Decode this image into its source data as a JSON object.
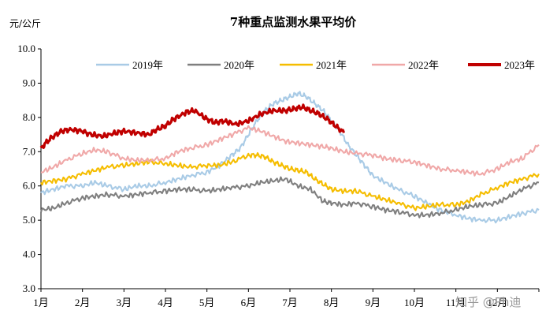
{
  "watermark": "知乎 @Ph迪",
  "chart_data": {
    "type": "line",
    "title": "7种重点监测水果平均价",
    "ylabel": "元/公斤",
    "ylim": [
      3.0,
      10.0
    ],
    "yticks": [
      "3.0",
      "4.0",
      "5.0",
      "6.0",
      "7.0",
      "8.0",
      "9.0",
      "10.0"
    ],
    "categories": [
      "1月",
      "2月",
      "3月",
      "4月",
      "5月",
      "6月",
      "7月",
      "8月",
      "9月",
      "10月",
      "11月",
      "12月"
    ],
    "legend_position": "top",
    "grid": false,
    "series": [
      {
        "name": "2019年",
        "color": "#a9cbe6",
        "x": [
          0,
          0.3,
          0.6,
          1.0,
          1.3,
          1.6,
          2.0,
          2.3,
          2.6,
          3.0,
          3.3,
          3.6,
          4.0,
          4.3,
          4.6,
          4.8,
          5.0,
          5.2,
          5.4,
          5.6,
          5.8,
          6.0,
          6.2,
          6.4,
          6.6,
          6.8,
          7.0,
          7.2,
          7.4,
          7.6,
          7.8,
          8.0,
          8.3,
          8.6,
          9.0,
          9.3,
          9.6,
          10.0,
          10.3,
          10.6,
          11.0,
          11.3,
          11.6,
          12.0
        ],
        "y": [
          5.8,
          5.9,
          6.0,
          6.0,
          6.1,
          6.0,
          5.9,
          6.0,
          6.0,
          6.1,
          6.2,
          6.3,
          6.4,
          6.6,
          6.9,
          7.1,
          7.5,
          7.9,
          8.2,
          8.4,
          8.5,
          8.6,
          8.7,
          8.6,
          8.4,
          8.2,
          7.9,
          7.6,
          7.2,
          6.9,
          6.6,
          6.3,
          6.1,
          5.9,
          5.7,
          5.5,
          5.3,
          5.15,
          5.05,
          5.0,
          5.0,
          5.1,
          5.2,
          5.3
        ]
      },
      {
        "name": "2020年",
        "color": "#7f7f7f",
        "x": [
          0,
          0.3,
          0.6,
          1.0,
          1.3,
          1.6,
          2.0,
          2.3,
          2.6,
          3.0,
          3.3,
          3.6,
          4.0,
          4.3,
          4.6,
          5.0,
          5.3,
          5.6,
          5.9,
          6.2,
          6.5,
          6.8,
          7.0,
          7.3,
          7.6,
          8.0,
          8.3,
          8.6,
          9.0,
          9.3,
          9.6,
          10.0,
          10.3,
          10.6,
          11.0,
          11.3,
          11.6,
          12.0
        ],
        "y": [
          5.3,
          5.35,
          5.5,
          5.65,
          5.7,
          5.75,
          5.7,
          5.75,
          5.8,
          5.85,
          5.9,
          5.9,
          5.85,
          5.9,
          5.95,
          6.0,
          6.1,
          6.15,
          6.2,
          6.0,
          5.9,
          5.55,
          5.5,
          5.45,
          5.5,
          5.4,
          5.3,
          5.25,
          5.15,
          5.15,
          5.2,
          5.3,
          5.4,
          5.45,
          5.5,
          5.7,
          5.9,
          6.1
        ]
      },
      {
        "name": "2021年",
        "color": "#f5bd00",
        "x": [
          0,
          0.3,
          0.6,
          1.0,
          1.3,
          1.6,
          2.0,
          2.3,
          2.6,
          3.0,
          3.3,
          3.6,
          4.0,
          4.3,
          4.6,
          5.0,
          5.2,
          5.4,
          5.6,
          5.8,
          6.0,
          6.2,
          6.4,
          6.6,
          6.8,
          7.0,
          7.3,
          7.6,
          8.0,
          8.3,
          8.6,
          9.0,
          9.3,
          9.6,
          10.0,
          10.3,
          10.6,
          11.0,
          11.3,
          11.6,
          12.0
        ],
        "y": [
          6.1,
          6.15,
          6.2,
          6.35,
          6.45,
          6.55,
          6.6,
          6.65,
          6.7,
          6.65,
          6.6,
          6.55,
          6.6,
          6.6,
          6.7,
          6.9,
          6.9,
          6.85,
          6.7,
          6.6,
          6.5,
          6.45,
          6.4,
          6.2,
          6.05,
          5.9,
          5.85,
          5.85,
          5.7,
          5.6,
          5.5,
          5.35,
          5.4,
          5.45,
          5.45,
          5.55,
          5.75,
          5.95,
          6.1,
          6.2,
          6.35
        ]
      },
      {
        "name": "2022年",
        "color": "#f0a8a8",
        "x": [
          0,
          0.3,
          0.6,
          1.0,
          1.3,
          1.6,
          2.0,
          2.3,
          2.6,
          3.0,
          3.3,
          3.6,
          4.0,
          4.3,
          4.6,
          5.0,
          5.3,
          5.6,
          5.9,
          6.2,
          6.5,
          6.8,
          7.0,
          7.3,
          7.6,
          8.0,
          8.3,
          8.6,
          9.0,
          9.3,
          9.6,
          10.0,
          10.3,
          10.6,
          11.0,
          11.3,
          11.6,
          12.0
        ],
        "y": [
          6.4,
          6.55,
          6.75,
          6.95,
          7.05,
          7.0,
          6.8,
          6.75,
          6.75,
          6.8,
          7.0,
          7.1,
          7.2,
          7.35,
          7.5,
          7.7,
          7.6,
          7.45,
          7.3,
          7.25,
          7.2,
          7.15,
          7.1,
          7.0,
          6.95,
          6.9,
          6.8,
          6.75,
          6.7,
          6.6,
          6.5,
          6.45,
          6.4,
          6.35,
          6.5,
          6.7,
          6.8,
          7.2
        ]
      },
      {
        "name": "2023年",
        "color": "#c00000",
        "x": [
          0,
          0.15,
          0.3,
          0.5,
          0.7,
          1.0,
          1.2,
          1.5,
          1.8,
          2.0,
          2.3,
          2.6,
          2.8,
          3.0,
          3.2,
          3.5,
          3.7,
          4.0,
          4.2,
          4.4,
          4.7,
          5.0,
          5.3,
          5.6,
          5.9,
          6.1,
          6.3,
          6.5,
          6.7,
          6.9,
          7.1,
          7.3
        ],
        "y": [
          7.1,
          7.3,
          7.45,
          7.6,
          7.65,
          7.6,
          7.5,
          7.45,
          7.55,
          7.6,
          7.55,
          7.5,
          7.65,
          7.75,
          7.95,
          8.15,
          8.2,
          7.95,
          7.85,
          7.9,
          7.8,
          7.9,
          8.1,
          8.2,
          8.2,
          8.25,
          8.3,
          8.2,
          8.1,
          7.95,
          7.75,
          7.55
        ]
      }
    ]
  }
}
